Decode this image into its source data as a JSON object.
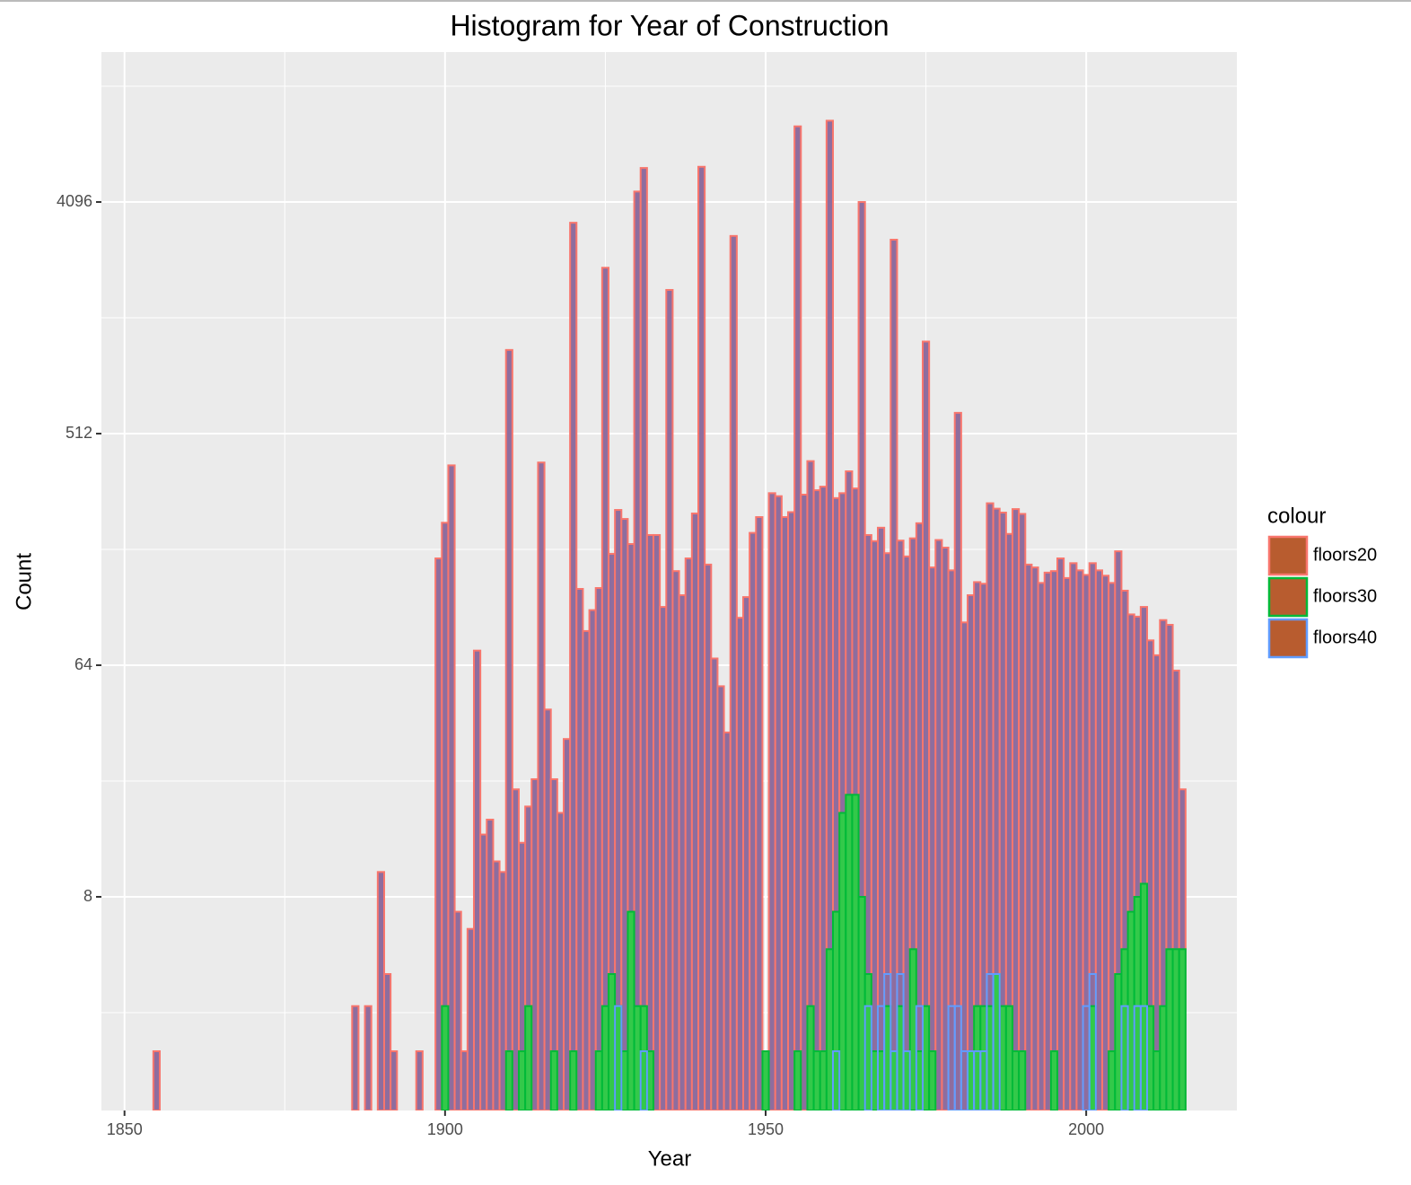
{
  "chart_data": {
    "type": "histogram",
    "title": "Histogram for Year of Construction",
    "xlabel": "Year",
    "ylabel": "Count",
    "legend_title": "colour",
    "legend_position": "right",
    "legend_fill": "#b85c2f",
    "grid": true,
    "ylog": true,
    "xlim": [
      1846.4,
      2023.5
    ],
    "xticks": [
      1850,
      1900,
      1950,
      2000
    ],
    "ylim": [
      1.175,
      15740
    ],
    "yticks": [
      8,
      64,
      512,
      4096
    ],
    "bins": [
      1854.5,
      1855.5,
      1856.5,
      1857.5,
      1858.5,
      1859.5,
      1860.5,
      1861.5,
      1862.5,
      1863.5,
      1864.5,
      1865.5,
      1866.5,
      1867.5,
      1868.5,
      1869.5,
      1870.5,
      1871.5,
      1872.5,
      1873.5,
      1874.5,
      1875.5,
      1876.5,
      1877.5,
      1878.5,
      1879.5,
      1880.5,
      1881.5,
      1882.5,
      1883.5,
      1884.5,
      1885.5,
      1886.5,
      1887.5,
      1888.5,
      1889.5,
      1890.5,
      1891.5,
      1892.5,
      1893.5,
      1894.5,
      1895.5,
      1896.5,
      1897.5,
      1898.5,
      1899.5,
      1900.5,
      1901.5,
      1902.5,
      1903.5,
      1904.5,
      1905.5,
      1906.5,
      1907.5,
      1908.5,
      1909.5,
      1910.5,
      1911.5,
      1912.5,
      1913.5,
      1914.5,
      1915.5,
      1916.5,
      1917.5,
      1918.5,
      1919.5,
      1920.5,
      1921.5,
      1922.5,
      1923.5,
      1924.5,
      1925.5,
      1926.5,
      1927.5,
      1928.5,
      1929.5,
      1930.5,
      1931.5,
      1932.5,
      1933.5,
      1934.5,
      1935.5,
      1936.5,
      1937.5,
      1938.5,
      1939.5,
      1940.5,
      1941.5,
      1942.5,
      1943.5,
      1944.5,
      1945.5,
      1946.5,
      1947.5,
      1948.5,
      1949.5,
      1950.5,
      1951.5,
      1952.5,
      1953.5,
      1954.5,
      1955.5,
      1956.5,
      1957.5,
      1958.5,
      1959.5,
      1960.5,
      1961.5,
      1962.5,
      1963.5,
      1964.5,
      1965.5,
      1966.5,
      1967.5,
      1968.5,
      1969.5,
      1970.5,
      1971.5,
      1972.5,
      1973.5,
      1974.5,
      1975.5,
      1976.5,
      1977.5,
      1978.5,
      1979.5,
      1980.5,
      1981.5,
      1982.5,
      1983.5,
      1984.5,
      1985.5,
      1986.5,
      1987.5,
      1988.5,
      1989.5,
      1990.5,
      1991.5,
      1992.5,
      1993.5,
      1994.5,
      1995.5,
      1996.5,
      1997.5,
      1998.5,
      1999.5,
      2000.5,
      2001.5,
      2002.5,
      2003.5,
      2004.5,
      2005.5,
      2006.5,
      2007.5,
      2008.5,
      2009.5,
      2010.5,
      2011.5,
      2012.5,
      2013.5,
      2014.5,
      2015.5
    ],
    "series": [
      {
        "name": "floors20",
        "color": "#f8766d",
        "fill": "#8e6d9e",
        "values": [
          2,
          0,
          0,
          0,
          0,
          0,
          0,
          0,
          0,
          0,
          0,
          0,
          0,
          0,
          0,
          0,
          0,
          0,
          0,
          0,
          0,
          0,
          0,
          0,
          0,
          0,
          0,
          0,
          0,
          0,
          0,
          3,
          0,
          3,
          0,
          10,
          4,
          2,
          0,
          0,
          0,
          2,
          0,
          0,
          167,
          230,
          385,
          7,
          2,
          6,
          73,
          14,
          16,
          11,
          10,
          1085,
          21,
          13,
          18,
          23,
          395,
          43,
          23,
          17,
          33,
          3400,
          127,
          87,
          105,
          128,
          2270,
          174,
          258,
          238,
          190,
          4500,
          5560,
          206,
          206,
          108,
          1860,
          149,
          120,
          167,
          250,
          5620,
          158,
          68,
          53,
          35,
          3020,
          98,
          118,
          210,
          242,
          2,
          300,
          292,
          242,
          253,
          8080,
          296,
          400,
          308,
          318,
          8500,
          287,
          300,
          365,
          313,
          4096,
          206,
          195,
          220,
          175,
          2920,
          196,
          170,
          200,
          229,
          1170,
          154,
          197,
          184,
          150,
          617,
          94,
          120,
          135,
          133,
          274,
          261,
          252,
          208,
          260,
          249,
          158,
          154,
          134,
          147,
          149,
          167,
          140,
          160,
          150,
          144,
          160,
          150,
          143,
          134,
          178,
          125,
          101,
          99,
          108,
          80,
          70,
          96,
          92,
          61,
          21
        ]
      },
      {
        "name": "floors30",
        "color": "#00ba38",
        "fill": "#33c94a",
        "values": [
          0,
          0,
          0,
          0,
          0,
          0,
          0,
          0,
          0,
          0,
          0,
          0,
          0,
          0,
          0,
          0,
          0,
          0,
          0,
          0,
          0,
          0,
          0,
          0,
          0,
          0,
          0,
          0,
          0,
          0,
          0,
          0,
          0,
          0,
          0,
          0,
          0,
          0,
          0,
          0,
          0,
          0,
          0,
          0,
          0,
          3,
          0,
          0,
          0,
          0,
          0,
          0,
          0,
          0,
          0,
          2,
          0,
          2,
          3,
          0,
          0,
          0,
          2,
          0,
          0,
          2,
          0,
          0,
          0,
          2,
          3,
          4,
          3,
          2,
          7,
          3,
          3,
          2,
          0,
          0,
          0,
          0,
          0,
          0,
          0,
          0,
          0,
          0,
          0,
          0,
          0,
          0,
          0,
          0,
          0,
          2,
          0,
          0,
          0,
          0,
          2,
          0,
          3,
          2,
          2,
          5,
          7,
          17,
          20,
          20,
          8,
          4,
          2,
          2,
          3,
          2,
          3,
          2,
          5,
          2,
          3,
          2,
          0,
          0,
          0,
          0,
          0,
          2,
          3,
          3,
          3,
          4,
          3,
          3,
          2,
          2,
          0,
          0,
          0,
          0,
          2,
          0,
          0,
          0,
          0,
          0,
          3,
          0,
          0,
          2,
          4,
          5,
          7,
          8,
          9,
          3,
          2,
          3,
          5,
          5,
          5
        ]
      },
      {
        "name": "floors40",
        "color": "#619cff",
        "fill": "none",
        "values": [
          0,
          0,
          0,
          0,
          0,
          0,
          0,
          0,
          0,
          0,
          0,
          0,
          0,
          0,
          0,
          0,
          0,
          0,
          0,
          0,
          0,
          0,
          0,
          0,
          0,
          0,
          0,
          0,
          0,
          0,
          0,
          0,
          0,
          0,
          0,
          0,
          0,
          0,
          0,
          0,
          0,
          0,
          0,
          0,
          0,
          0,
          0,
          0,
          0,
          0,
          0,
          0,
          0,
          0,
          0,
          0,
          0,
          0,
          0,
          0,
          0,
          0,
          0,
          0,
          0,
          0,
          0,
          0,
          0,
          0,
          0,
          0,
          3,
          0,
          0,
          0,
          2,
          0,
          0,
          0,
          0,
          0,
          0,
          0,
          0,
          0,
          0,
          0,
          0,
          0,
          0,
          0,
          0,
          0,
          0,
          0,
          0,
          0,
          0,
          0,
          0,
          0,
          0,
          0,
          0,
          0,
          2,
          0,
          0,
          0,
          0,
          3,
          0,
          3,
          4,
          2,
          4,
          2,
          0,
          3,
          0,
          0,
          0,
          0,
          3,
          3,
          2,
          2,
          2,
          2,
          4,
          4,
          0,
          0,
          0,
          0,
          0,
          0,
          0,
          0,
          0,
          0,
          0,
          0,
          0,
          3,
          4,
          0,
          0,
          0,
          0,
          3,
          0,
          3,
          3,
          0,
          0,
          0,
          0,
          0,
          0
        ]
      }
    ]
  }
}
